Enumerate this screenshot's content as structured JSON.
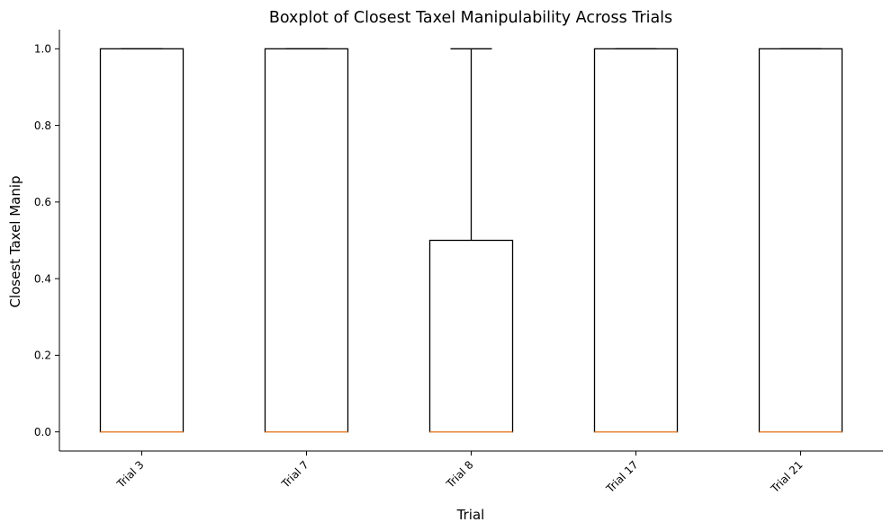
{
  "chart_data": {
    "type": "boxplot",
    "title": "Boxplot of Closest Taxel Manipulability Across Trials",
    "xlabel": "Trial",
    "ylabel": "Closest Taxel Manip",
    "ylim": [
      -0.05,
      1.05
    ],
    "yticks": [
      0.0,
      0.2,
      0.4,
      0.6,
      0.8,
      1.0
    ],
    "ytick_labels": [
      "0.0",
      "0.2",
      "0.4",
      "0.6",
      "0.8",
      "1.0"
    ],
    "grid": false,
    "median_color": "#e8883a",
    "box_color": "#000000",
    "categories": [
      "Trial 3",
      "Trial 7",
      "Trial 8",
      "Trial 17",
      "Trial 21"
    ],
    "boxes": [
      {
        "whisker_low": 0.0,
        "q1": 0.0,
        "median": 0.0,
        "q3": 1.0,
        "whisker_high": 1.0
      },
      {
        "whisker_low": 0.0,
        "q1": 0.0,
        "median": 0.0,
        "q3": 1.0,
        "whisker_high": 1.0
      },
      {
        "whisker_low": 0.0,
        "q1": 0.0,
        "median": 0.0,
        "q3": 0.5,
        "whisker_high": 1.0
      },
      {
        "whisker_low": 0.0,
        "q1": 0.0,
        "median": 0.0,
        "q3": 1.0,
        "whisker_high": 1.0
      },
      {
        "whisker_low": 0.0,
        "q1": 0.0,
        "median": 0.0,
        "q3": 1.0,
        "whisker_high": 1.0
      }
    ]
  }
}
